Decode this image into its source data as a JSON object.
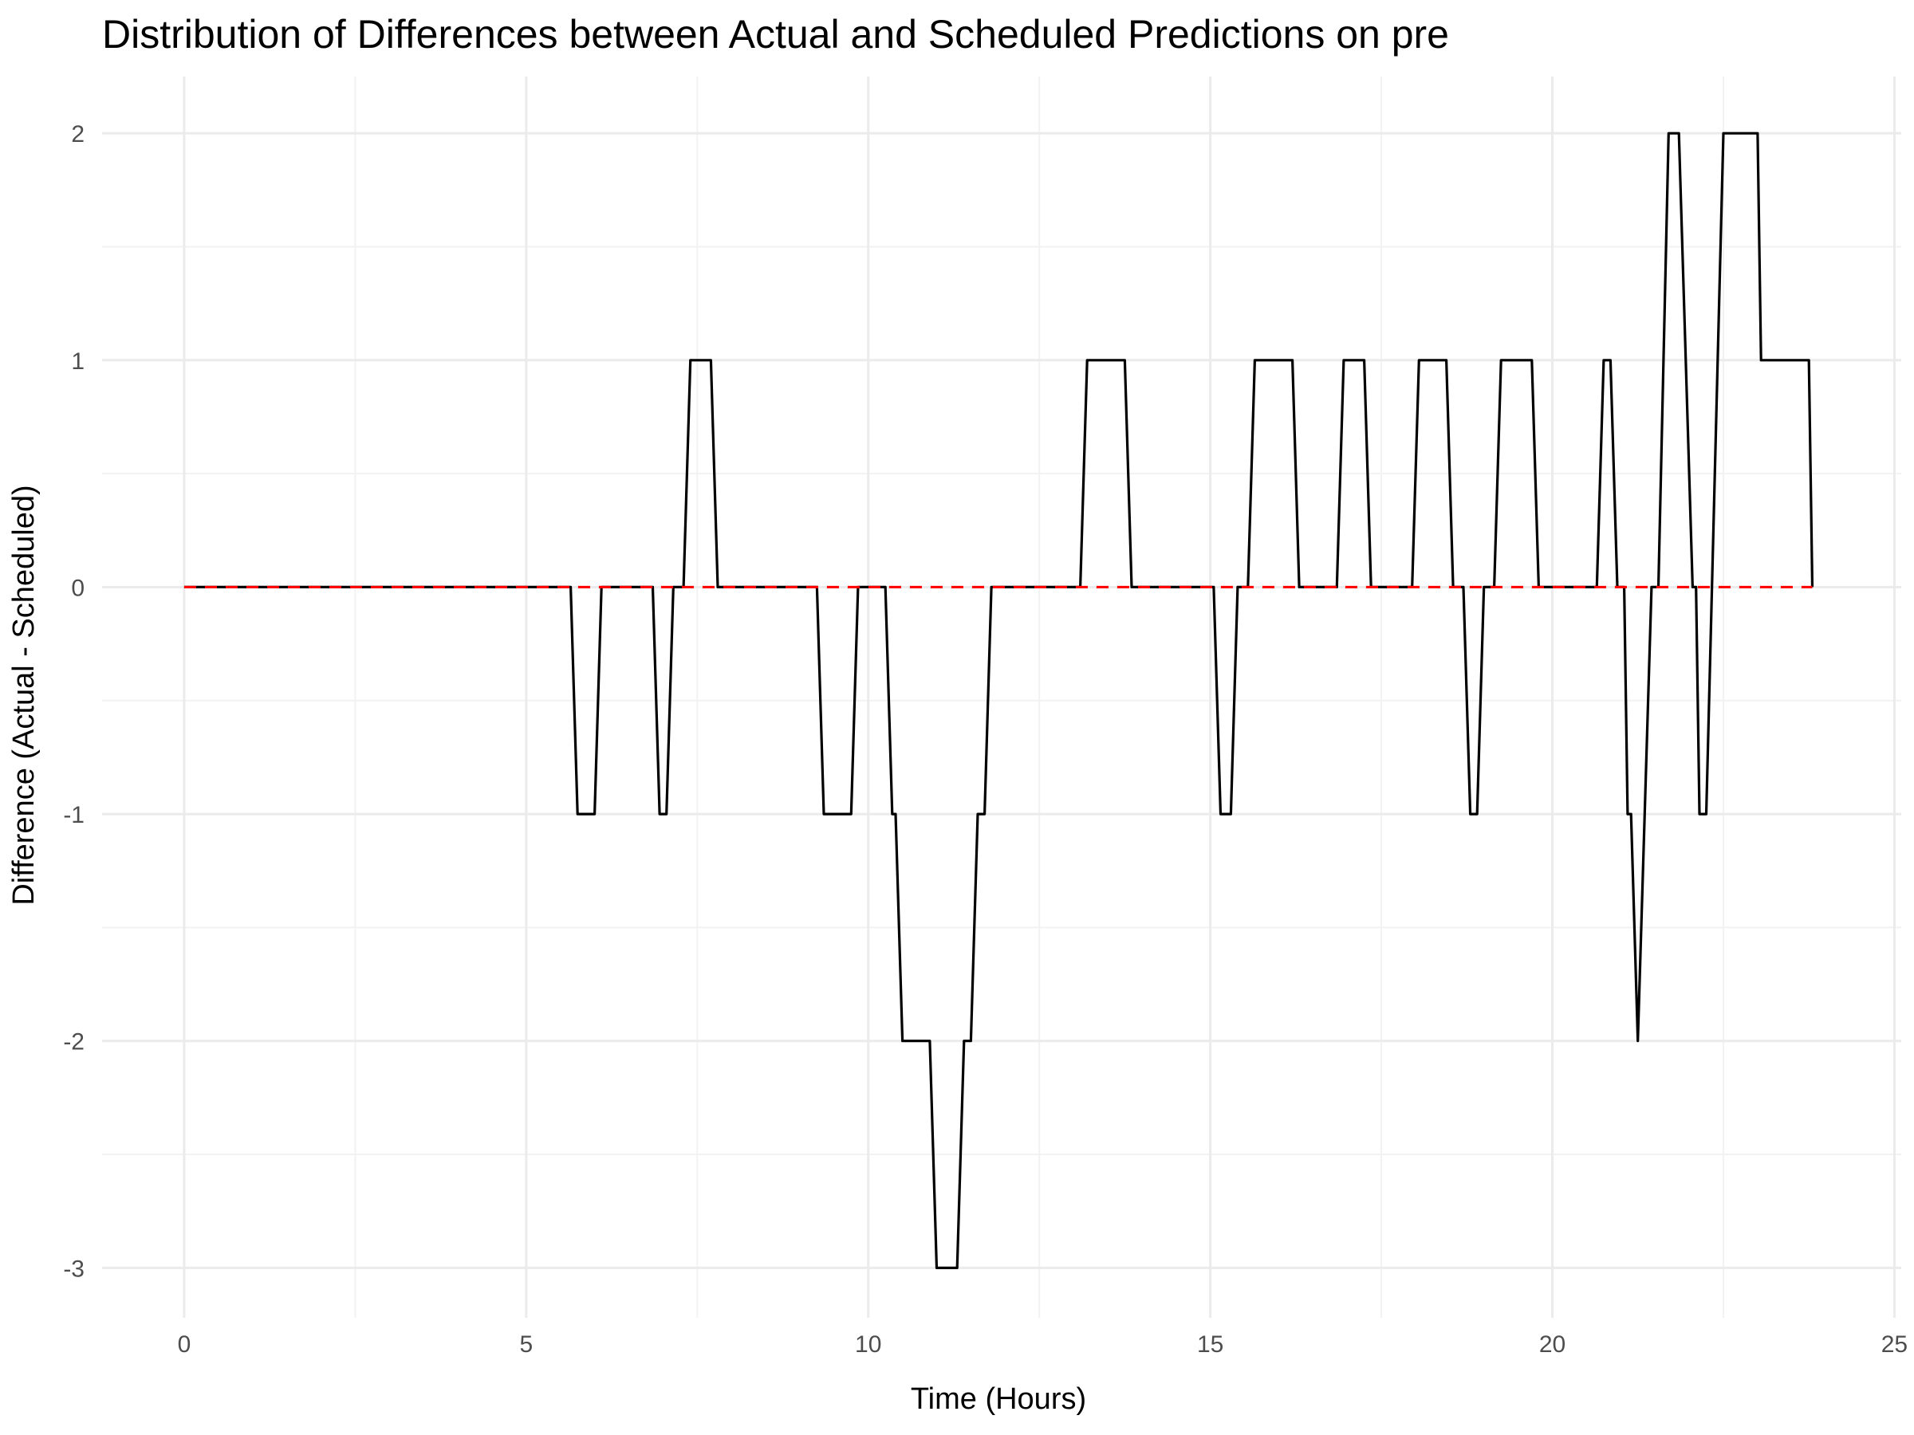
{
  "chart_data": {
    "type": "line",
    "title": "Distribution of Differences between Actual and Scheduled Predictions on pre",
    "xlabel": "Time (Hours)",
    "ylabel": "Difference (Actual - Scheduled)",
    "xlim": [
      -1.2,
      25.1
    ],
    "ylim": [
      -3.22,
      2.25
    ],
    "x_ticks": [
      0,
      5,
      10,
      15,
      20,
      25
    ],
    "y_ticks": [
      -3,
      -2,
      -1,
      0,
      1,
      2
    ],
    "x_tick_labels": [
      "0",
      "5",
      "10",
      "15",
      "20",
      "25"
    ],
    "y_tick_labels": [
      "-3",
      "-2",
      "-1",
      "0",
      "1",
      "2"
    ],
    "grid": true,
    "legend": "none",
    "reference_line": {
      "y": 0,
      "style": "dashed",
      "color": "#ff0000"
    },
    "line_color": "#000000",
    "series": [
      {
        "points": [
          [
            0,
            0
          ],
          [
            5.65,
            0
          ],
          [
            5.75,
            -1
          ],
          [
            6.0,
            -1
          ],
          [
            6.1,
            0
          ],
          [
            6.85,
            0
          ],
          [
            6.95,
            -1
          ],
          [
            7.05,
            -1
          ],
          [
            7.15,
            0
          ],
          [
            7.3,
            0
          ],
          [
            7.4,
            1
          ],
          [
            7.7,
            1
          ],
          [
            7.8,
            0
          ],
          [
            9.25,
            0
          ],
          [
            9.35,
            -1
          ],
          [
            9.75,
            -1
          ],
          [
            9.85,
            0
          ],
          [
            10.25,
            0
          ],
          [
            10.35,
            -1
          ],
          [
            10.4,
            -1
          ],
          [
            10.5,
            -2
          ],
          [
            10.9,
            -2
          ],
          [
            11.0,
            -3
          ],
          [
            11.3,
            -3
          ],
          [
            11.4,
            -2
          ],
          [
            11.5,
            -2
          ],
          [
            11.6,
            -1
          ],
          [
            11.7,
            -1
          ],
          [
            11.8,
            0
          ],
          [
            13.1,
            0
          ],
          [
            13.2,
            1
          ],
          [
            13.75,
            1
          ],
          [
            13.85,
            0
          ],
          [
            15.05,
            0
          ],
          [
            15.15,
            -1
          ],
          [
            15.3,
            -1
          ],
          [
            15.4,
            0
          ],
          [
            15.55,
            0
          ],
          [
            15.65,
            1
          ],
          [
            16.2,
            1
          ],
          [
            16.3,
            0
          ],
          [
            16.85,
            0
          ],
          [
            16.95,
            1
          ],
          [
            17.25,
            1
          ],
          [
            17.35,
            0
          ],
          [
            17.95,
            0
          ],
          [
            18.05,
            1
          ],
          [
            18.45,
            1
          ],
          [
            18.55,
            0
          ],
          [
            18.7,
            0
          ],
          [
            18.8,
            -1
          ],
          [
            18.9,
            -1
          ],
          [
            19.0,
            0
          ],
          [
            19.15,
            0
          ],
          [
            19.25,
            1
          ],
          [
            19.7,
            1
          ],
          [
            19.8,
            0
          ],
          [
            20.65,
            0
          ],
          [
            20.75,
            1
          ],
          [
            20.85,
            1
          ],
          [
            20.95,
            0
          ],
          [
            21.05,
            0
          ],
          [
            21.1,
            -1
          ],
          [
            21.15,
            -1
          ],
          [
            21.25,
            -2
          ],
          [
            21.45,
            0
          ],
          [
            21.55,
            0
          ],
          [
            21.7,
            2
          ],
          [
            21.85,
            2
          ],
          [
            22.05,
            0
          ],
          [
            22.1,
            0
          ],
          [
            22.15,
            -1
          ],
          [
            22.25,
            -1
          ],
          [
            22.5,
            2
          ],
          [
            23.0,
            2
          ],
          [
            23.05,
            1
          ],
          [
            23.75,
            1
          ],
          [
            23.8,
            0
          ]
        ]
      }
    ]
  }
}
